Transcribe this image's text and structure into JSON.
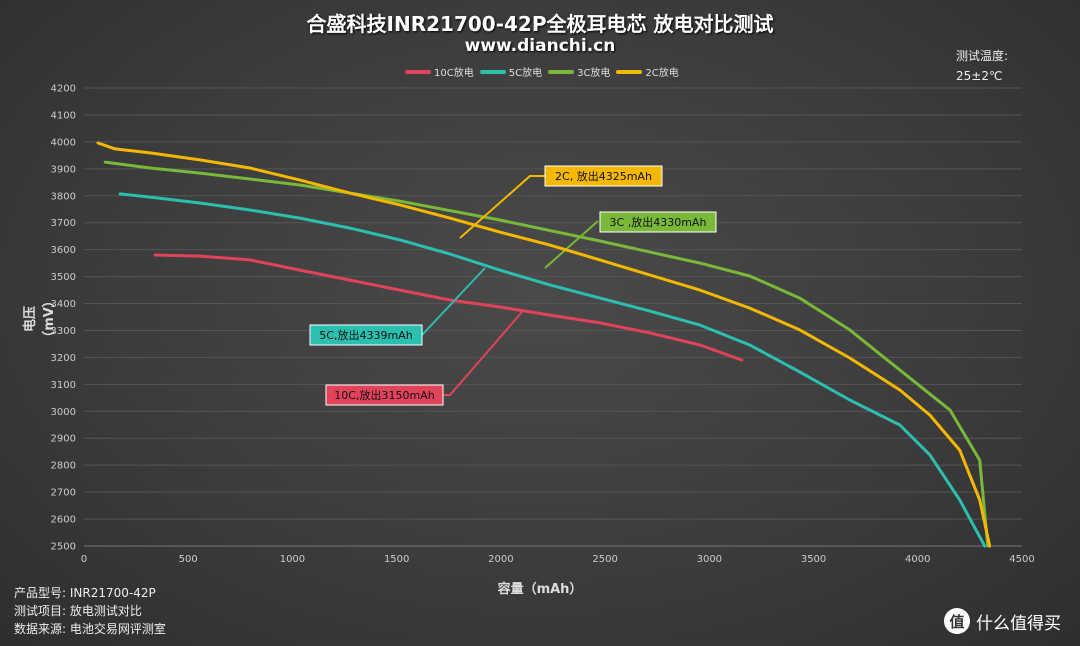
{
  "chart_data": {
    "type": "line",
    "title": "合盛科技INR21700-42P全极耳电芯 放电对比测试",
    "subtitle": "www.dianchi.cn",
    "xlabel": "容量（mAh）",
    "ylabel": "电压（mV）",
    "xlim": [
      0,
      4500
    ],
    "ylim": [
      2500,
      4200
    ],
    "xticks": [
      "0",
      "500",
      "1000",
      "1500",
      "2000",
      "2500",
      "3000",
      "3500",
      "4000",
      "4500"
    ],
    "yticks": [
      "2500",
      "2600",
      "2700",
      "2800",
      "2900",
      "3000",
      "3100",
      "3200",
      "3300",
      "3400",
      "3500",
      "3600",
      "3700",
      "3800",
      "3900",
      "4000",
      "4100",
      "4200"
    ],
    "grid": "horizontal",
    "legend_position": "top",
    "series": [
      {
        "name": "10C放电",
        "color": "#e0435a",
        "label": "10C,放出3150mAh",
        "x": [
          341,
          556,
          796,
          1036,
          1276,
          1516,
          1755,
          1995,
          2235,
          2475,
          2715,
          2955,
          3156
        ],
        "y": [
          3580,
          3576,
          3562,
          3524,
          3487,
          3450,
          3413,
          3387,
          3357,
          3328,
          3291,
          3246,
          3190
        ]
      },
      {
        "name": "5C放电",
        "color": "#2bbfb0",
        "label": "5C,放出4339mAh",
        "x": [
          173,
          317,
          556,
          796,
          1036,
          1276,
          1516,
          1755,
          1995,
          2235,
          2475,
          2715,
          2955,
          3194,
          3434,
          3674,
          3914,
          4058,
          4201,
          4321
        ],
        "y": [
          3807,
          3795,
          3773,
          3747,
          3717,
          3680,
          3636,
          3584,
          3524,
          3469,
          3420,
          3372,
          3320,
          3246,
          3146,
          3042,
          2949,
          2838,
          2671,
          2500
        ]
      },
      {
        "name": "3C放电",
        "color": "#7ab83a",
        "label": "3C ,放出4330mAh",
        "x": [
          101,
          317,
          556,
          1036,
          1516,
          1995,
          2475,
          2955,
          3194,
          3434,
          3674,
          3914,
          4154,
          4297,
          4336
        ],
        "y": [
          3925,
          3903,
          3884,
          3840,
          3780,
          3710,
          3632,
          3550,
          3502,
          3420,
          3302,
          3153,
          3005,
          2819,
          2500
        ]
      },
      {
        "name": "2C放电",
        "color": "#f5b800",
        "label": "2C, 放出4325mAh",
        "x": [
          67,
          149,
          317,
          556,
          796,
          1036,
          1276,
          1516,
          1755,
          1995,
          2235,
          2475,
          2715,
          2955,
          3194,
          3434,
          3674,
          3914,
          4058,
          4201,
          4297,
          4345
        ],
        "y": [
          3996,
          3974,
          3959,
          3933,
          3903,
          3858,
          3810,
          3766,
          3717,
          3665,
          3617,
          3562,
          3506,
          3450,
          3383,
          3302,
          3198,
          3079,
          2986,
          2856,
          2671,
          2500
        ]
      }
    ]
  },
  "temperature": {
    "label": "测试温度:",
    "value": "25±2℃"
  },
  "info": [
    "产品型号: INR21700-42P",
    "测试项目: 放电测试对比",
    "数据来源: 电池交易网评测室"
  ],
  "watermark": {
    "logo": "值",
    "text": "什么值得买"
  }
}
